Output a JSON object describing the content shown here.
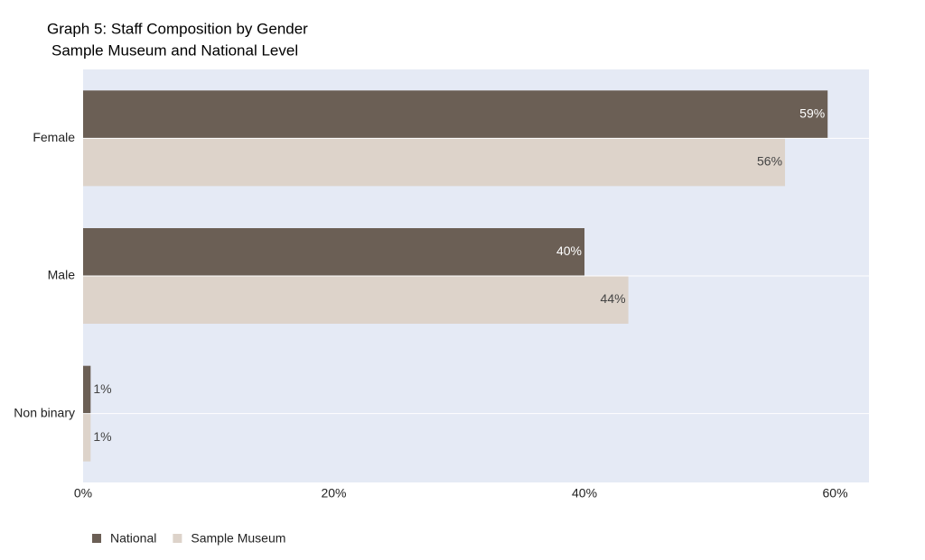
{
  "chart_data": {
    "type": "bar",
    "orientation": "horizontal",
    "title": "Graph 5: Staff Composition by Gender",
    "subtitle": "Sample Museum and National Level",
    "categories": [
      "Female",
      "Male",
      "Non binary"
    ],
    "series": [
      {
        "name": "National",
        "color": "#6b5f55",
        "values": [
          59.4,
          40,
          0.6
        ],
        "value_labels": [
          "59%",
          "40%",
          "1%"
        ]
      },
      {
        "name": "Sample Museum",
        "color": "#ddd3ca",
        "values": [
          56,
          43.5,
          0.6
        ],
        "value_labels": [
          "56%",
          "44%",
          "1%"
        ]
      }
    ],
    "xlim": [
      0,
      62.7
    ],
    "xticks": [
      {
        "value": 0,
        "label": "0%"
      },
      {
        "value": 20,
        "label": "20%"
      },
      {
        "value": 40,
        "label": "40%"
      },
      {
        "value": 60,
        "label": "60%"
      }
    ],
    "grid": true,
    "legend": "bottom-left",
    "background": "#e5eaf5"
  }
}
